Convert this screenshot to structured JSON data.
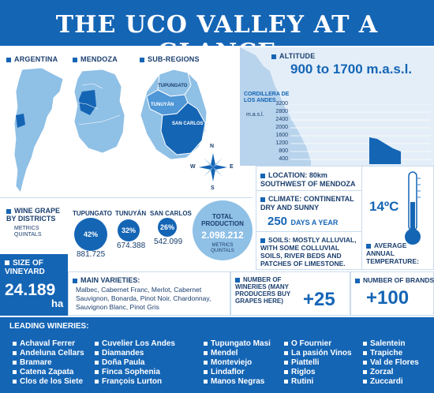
{
  "title": "THE UCO VALLEY AT A GLANCE",
  "maps": {
    "argentina_label": "ARGENTINA",
    "mendoza_label": "MENDOZA",
    "subregions_label": "SUB-REGIONS",
    "tupungato": "TUPUNGATO",
    "tunuyan": "TUNUYÁN",
    "san_carlos": "SAN CARLOS",
    "compass": {
      "n": "N",
      "s": "S",
      "e": "E",
      "w": "W"
    }
  },
  "altitude": {
    "label": "ALTITUDE",
    "value": "900 to 1700 m.a.s.l.",
    "cordillera": "CORDILLERA DE LOS ANDES",
    "unit": "m.a.s.l.",
    "ticks": [
      "3200",
      "2800",
      "2400",
      "2000",
      "1600",
      "1200",
      "800",
      "400"
    ]
  },
  "location": {
    "label": "LOCATION: 80km SOUTHWEST OF MENDOZA"
  },
  "climate": {
    "label": "CLIMATE: CONTINENTAL DRY AND SUNNY",
    "days": "250",
    "days_label": "DAYS A YEAR"
  },
  "temperature": {
    "value": "14ºC",
    "label": "AVERAGE ANNUAL TEMPERATURE:"
  },
  "soils": {
    "label": "SOILS: MOSTLY ALLUVIAL, WITH SOME COLLUVIAL SOILS, RIVER BEDS AND PATCHES OF LIMESTONE."
  },
  "production": {
    "label": "WINE GRAPE BY DISTRICTS",
    "sub": "METRICS QUINTALS",
    "districts": [
      {
        "name": "TUPUNGATO",
        "pct": "42%",
        "value": "881.725"
      },
      {
        "name": "TUNUYÁN",
        "pct": "32%",
        "value": "674.388"
      },
      {
        "name": "SAN CARLOS",
        "pct": "26%",
        "value": "542.099"
      }
    ],
    "total_label": "TOTAL PRODUCTION",
    "total_value": "2.098.212",
    "total_unit": "METRICS QUINTALS"
  },
  "vineyard": {
    "label": "SIZE OF VINEYARD",
    "value": "24.189",
    "unit": "ha"
  },
  "varieties": {
    "label": "MAIN VARIETIES:",
    "text": "Malbec, Cabernet Franc, Merlot, Cabernet Sauvignon, Bonarda, Pinot Noir, Chardonnay, Sauvignon Blanc, Pinot Gris"
  },
  "wineries_buying": {
    "label": "NUMBER OF WINERIES (MANY PRODUCERS BUY GRAPES HERE)",
    "value": "+25"
  },
  "brands": {
    "label": "NUMBER OF BRANDS",
    "value": "+100"
  },
  "leading": {
    "label": "LEADING WINERIES:",
    "columns": [
      [
        "Achaval Ferrer",
        "Andeluna Cellars",
        "Bramare",
        "Catena Zapata",
        "Clos de los Siete"
      ],
      [
        "Cuvelier Los Andes",
        "Diamandes",
        "Doña Paula",
        "Finca Sophenia",
        "François Lurton"
      ],
      [
        "Tupungato Masi",
        "Mendel",
        "Monteviejo",
        "Lindaflor",
        "Manos Negras"
      ],
      [
        "O Fournier",
        "La pasión Vinos",
        "Piattelli",
        "Riglos",
        "Rutini"
      ],
      [
        "Salentein",
        "Trapiche",
        "Val de Flores",
        "Zorzal",
        "Zuccardi"
      ]
    ]
  },
  "colors": {
    "primary": "#1565b5",
    "light_blue": "#8fc0e6",
    "dark_blue": "#1a3e6e"
  }
}
